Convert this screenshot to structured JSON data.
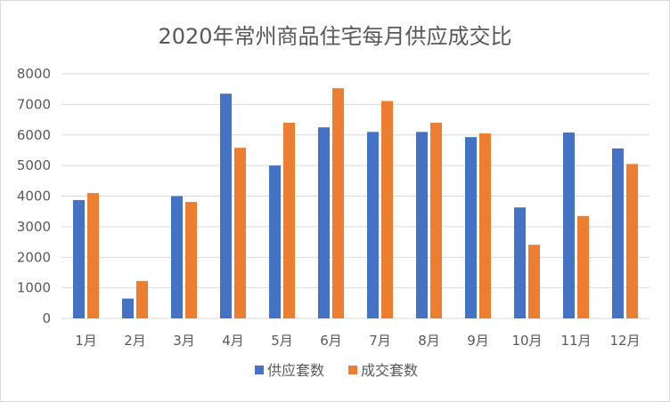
{
  "chart_data": {
    "type": "bar",
    "title": "2020年常州商品住宅每月供应成交比",
    "categories": [
      "1月",
      "2月",
      "3月",
      "4月",
      "5月",
      "6月",
      "7月",
      "8月",
      "9月",
      "10月",
      "11月",
      "12月"
    ],
    "series": [
      {
        "name": "供应套数",
        "color": "#4472c4",
        "values": [
          3870,
          650,
          4000,
          7350,
          5000,
          6250,
          6100,
          6100,
          5930,
          3630,
          6080,
          5560
        ]
      },
      {
        "name": "成交套数",
        "color": "#ed7d31",
        "values": [
          4100,
          1220,
          3810,
          5580,
          6400,
          7530,
          7110,
          6400,
          6050,
          2410,
          3350,
          5050
        ]
      }
    ],
    "ylim": [
      0,
      8000
    ],
    "yticks": [
      "0",
      "1000",
      "2000",
      "3000",
      "4000",
      "5000",
      "6000",
      "7000",
      "8000"
    ],
    "grid": true,
    "legend_position": "bottom"
  }
}
